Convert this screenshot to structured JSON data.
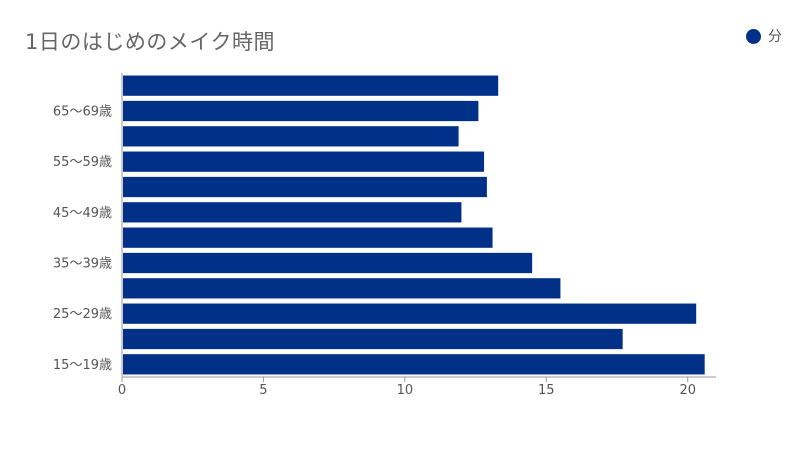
{
  "colors": {
    "bar": "#003087",
    "axis": "#999999"
  },
  "chart_data": {
    "type": "bar",
    "orientation": "horizontal",
    "title": "1日のはじめのメイク時間",
    "categories": [
      "15～19歳",
      "",
      "25～29歳",
      "",
      "35～39歳",
      "",
      "45～49歳",
      "",
      "55～59歳",
      "",
      "65～69歳",
      ""
    ],
    "series": [
      {
        "name": "分",
        "values": [
          20.6,
          17.7,
          20.3,
          15.5,
          14.5,
          13.1,
          12.0,
          12.9,
          12.8,
          11.9,
          12.6,
          13.3
        ]
      }
    ],
    "xlim": [
      0,
      21
    ],
    "xticks": [
      0,
      5,
      10,
      15,
      20
    ],
    "legend_position": "top-right",
    "grid": false
  }
}
